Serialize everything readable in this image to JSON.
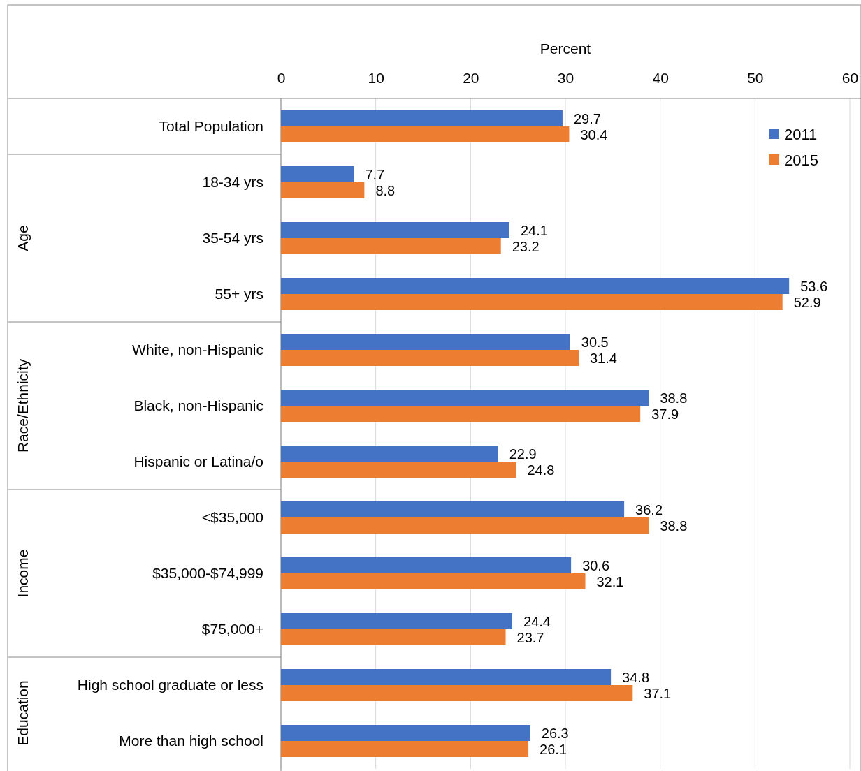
{
  "chart_data": {
    "type": "bar",
    "orientation": "horizontal",
    "xlabel": "Percent",
    "categories": [
      "Total Population",
      "18-34 yrs",
      "35-54 yrs",
      "55+ yrs",
      "White, non-Hispanic",
      "Black, non-Hispanic",
      "Hispanic or Latina/o",
      "<$35,000",
      "$35,000-$74,999",
      "$75,000+",
      "High school graduate or less",
      "More than high school"
    ],
    "series": [
      {
        "name": "2011",
        "color": "#4472c4",
        "values": [
          29.7,
          7.7,
          24.1,
          53.6,
          30.5,
          38.8,
          22.9,
          36.2,
          30.6,
          24.4,
          34.8,
          26.3
        ]
      },
      {
        "name": "2015",
        "color": "#ed7d31",
        "values": [
          30.4,
          8.8,
          23.2,
          52.9,
          31.4,
          37.9,
          24.8,
          38.8,
          32.1,
          23.7,
          37.1,
          26.1
        ]
      }
    ],
    "xlim": [
      0,
      60
    ],
    "xticks": [
      0,
      10,
      20,
      30,
      40,
      50,
      60
    ],
    "grid": "x",
    "legend": "top right",
    "data_labels": true,
    "annotations": [
      "Age",
      "Race/Ethnicity",
      "Income",
      "Education"
    ]
  }
}
